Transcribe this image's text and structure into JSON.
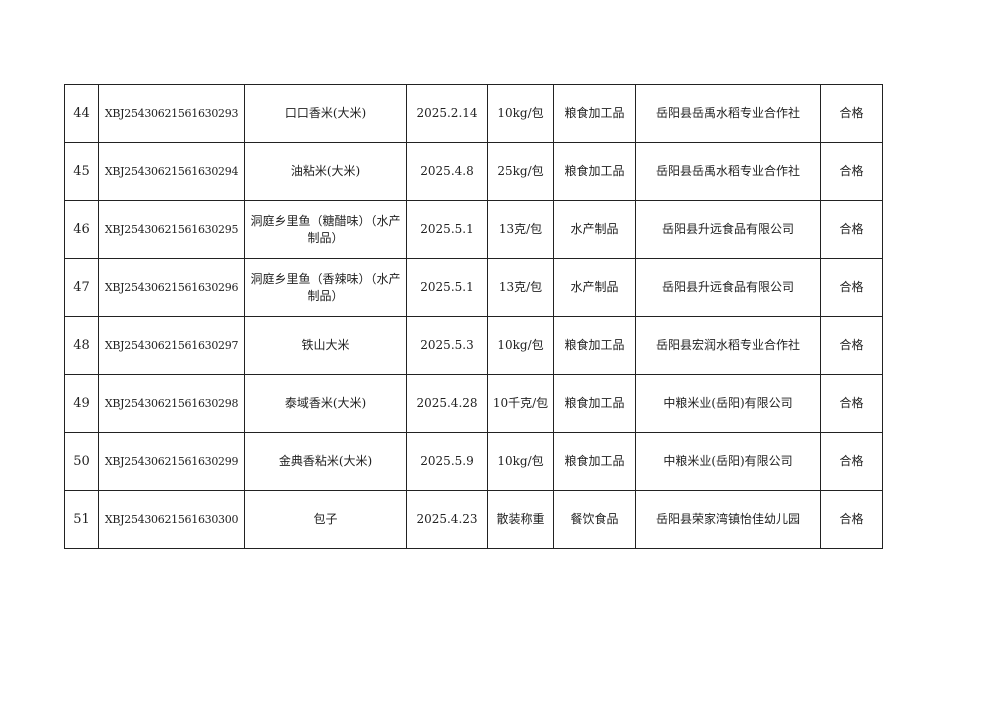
{
  "rows": [
    {
      "no": "44",
      "code": "XBJ25430621561630293",
      "name": "口口香米(大米)",
      "date": "2025.2.14",
      "spec": "10kg/包",
      "category": "粮食加工品",
      "producer": "岳阳县岳禹水稻专业合作社",
      "result": "合格"
    },
    {
      "no": "45",
      "code": "XBJ25430621561630294",
      "name": "油粘米(大米)",
      "date": "2025.4.8",
      "spec": "25kg/包",
      "category": "粮食加工品",
      "producer": "岳阳县岳禹水稻专业合作社",
      "result": "合格"
    },
    {
      "no": "46",
      "code": "XBJ25430621561630295",
      "name": "洞庭乡里鱼（糖醋味）（水产制品）",
      "date": "2025.5.1",
      "spec": "13克/包",
      "category": "水产制品",
      "producer": "岳阳县升远食品有限公司",
      "result": "合格"
    },
    {
      "no": "47",
      "code": "XBJ25430621561630296",
      "name": "洞庭乡里鱼（香辣味）（水产制品）",
      "date": "2025.5.1",
      "spec": "13克/包",
      "category": "水产制品",
      "producer": "岳阳县升远食品有限公司",
      "result": "合格"
    },
    {
      "no": "48",
      "code": "XBJ25430621561630297",
      "name": "铁山大米",
      "date": "2025.5.3",
      "spec": "10kg/包",
      "category": "粮食加工品",
      "producer": "岳阳县宏润水稻专业合作社",
      "result": "合格"
    },
    {
      "no": "49",
      "code": "XBJ25430621561630298",
      "name": "泰域香米(大米)",
      "date": "2025.4.28",
      "spec": "10千克/包",
      "category": "粮食加工品",
      "producer": "中粮米业(岳阳)有限公司",
      "result": "合格"
    },
    {
      "no": "50",
      "code": "XBJ25430621561630299",
      "name": "金典香粘米(大米)",
      "date": "2025.5.9",
      "spec": "10kg/包",
      "category": "粮食加工品",
      "producer": "中粮米业(岳阳)有限公司",
      "result": "合格"
    },
    {
      "no": "51",
      "code": "XBJ25430621561630300",
      "name": "包子",
      "date": "2025.4.23",
      "spec": "散装称重",
      "category": "餐饮食品",
      "producer": "岳阳县荣家湾镇怡佳幼儿园",
      "result": "合格"
    }
  ]
}
